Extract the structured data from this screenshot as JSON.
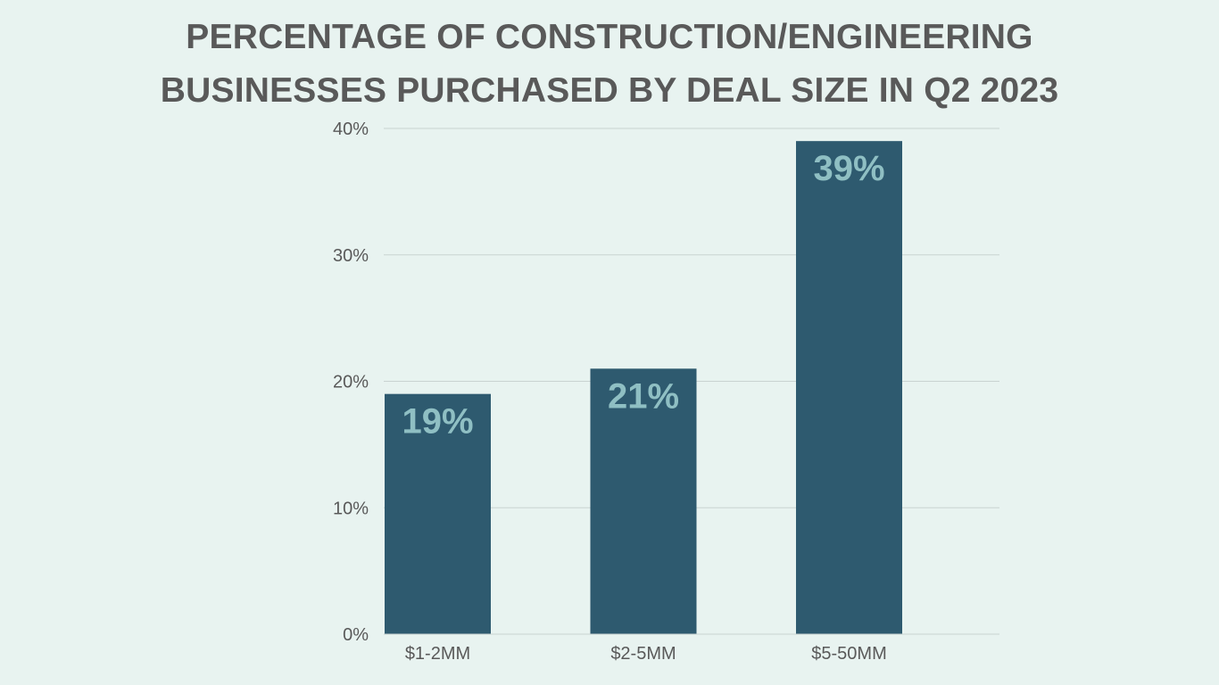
{
  "title": {
    "line1": "PERCENTAGE OF CONSTRUCTION/ENGINEERING",
    "line2": "BUSINESSES PURCHASED BY DEAL SIZE IN Q2 2023"
  },
  "colors": {
    "background": "#e8f3f0",
    "bar": "#2e5a6f",
    "data_label": "#8fbfc3",
    "gridline": "#c9d3d1",
    "axis_text": "#595959"
  },
  "chart_data": {
    "type": "bar",
    "title": "PERCENTAGE OF CONSTRUCTION/ENGINEERING BUSINESSES PURCHASED BY DEAL SIZE IN Q2 2023",
    "categories": [
      "$1-2MM",
      "$2-5MM",
      "$5-50MM"
    ],
    "values": [
      19,
      21,
      39
    ],
    "data_labels": [
      "19%",
      "21%",
      "39%"
    ],
    "xlabel": "",
    "ylabel": "",
    "ylim": [
      0,
      40
    ],
    "yticks": [
      0,
      10,
      20,
      30,
      40
    ],
    "ytick_labels": [
      "0%",
      "10%",
      "20%",
      "30%",
      "40%"
    ],
    "grid": true,
    "legend": "none"
  }
}
